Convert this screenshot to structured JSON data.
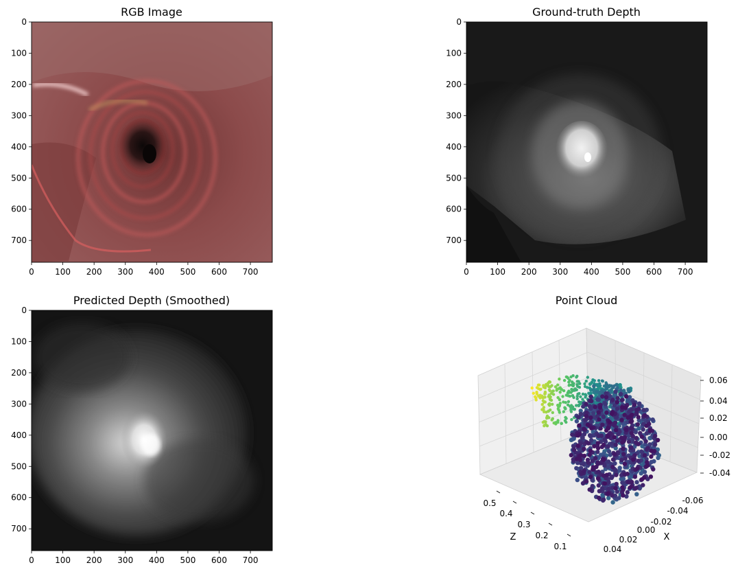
{
  "chart_data": [
    {
      "type": "image",
      "title": "RGB Image",
      "xticks": [
        "0",
        "100",
        "200",
        "300",
        "400",
        "500",
        "600",
        "700"
      ],
      "yticks": [
        "0",
        "100",
        "200",
        "300",
        "400",
        "500",
        "600",
        "700"
      ],
      "xlim": [
        0,
        770
      ],
      "ylim": [
        770,
        0
      ],
      "tick_values": [
        0,
        100,
        200,
        300,
        400,
        500,
        600,
        700
      ],
      "colors": {
        "tissue": "#8c4a4a",
        "tissue_dark": "#5a2a2a",
        "lumen": "#141010",
        "highlight": "#f0c8c8"
      }
    },
    {
      "type": "image",
      "title": "Ground-truth Depth",
      "xticks": [
        "0",
        "100",
        "200",
        "300",
        "400",
        "500",
        "600",
        "700"
      ],
      "yticks": [
        "0",
        "100",
        "200",
        "300",
        "400",
        "500",
        "600",
        "700"
      ],
      "xlim": [
        0,
        770
      ],
      "ylim": [
        770,
        0
      ],
      "tick_values": [
        0,
        100,
        200,
        300,
        400,
        500,
        600,
        700
      ],
      "colors": {
        "far": "#141414",
        "mid": "#4a4a4a",
        "near": "#f0f0f0"
      }
    },
    {
      "type": "image",
      "title": "Predicted Depth (Smoothed)",
      "xticks": [
        "0",
        "100",
        "200",
        "300",
        "400",
        "500",
        "600",
        "700"
      ],
      "yticks": [
        "0",
        "100",
        "200",
        "300",
        "400",
        "500",
        "600",
        "700"
      ],
      "xlim": [
        0,
        770
      ],
      "ylim": [
        770,
        0
      ],
      "tick_values": [
        0,
        100,
        200,
        300,
        400,
        500,
        600,
        700
      ],
      "colors": {
        "far": "#101010",
        "mid": "#555555",
        "near": "#f4f4f4"
      }
    },
    {
      "type": "scatter3d",
      "title": "Point Cloud",
      "xlabel": "X",
      "ylabel": "",
      "zlabel": "Z",
      "x_axis_label_text": "X",
      "z_axis_label_text": "Z",
      "z_ticks": [
        "0.5",
        "0.4",
        "0.3",
        "0.2",
        "0.1"
      ],
      "x_ticks": [
        "-0.06",
        "-0.04",
        "-0.02",
        "0.00",
        "0.02",
        "0.04"
      ],
      "vertical_ticks": [
        "0.06",
        "0.04",
        "0.02",
        "0.00",
        "-0.02",
        "-0.04"
      ],
      "colormap": [
        "#440154",
        "#3b528b",
        "#21918c",
        "#5ec962",
        "#fde725"
      ]
    }
  ]
}
